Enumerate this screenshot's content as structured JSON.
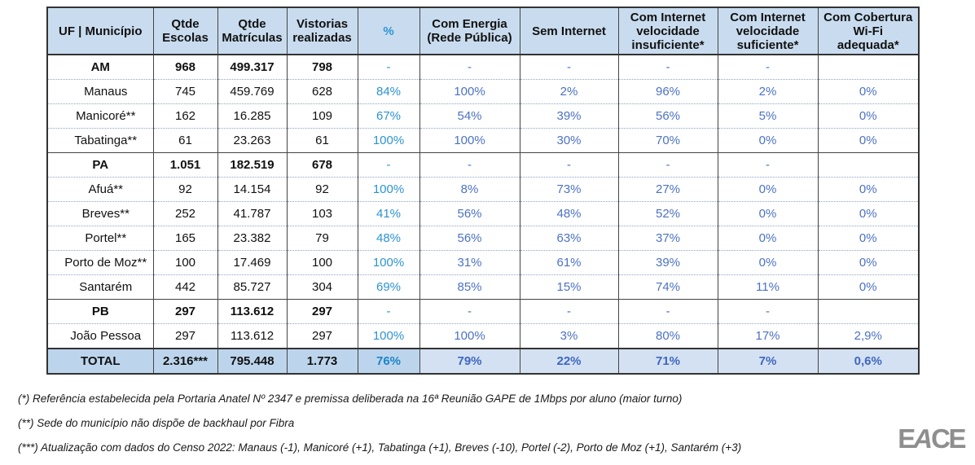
{
  "table": {
    "headers": [
      "UF | Município",
      "Qtde\nEscolas",
      "Qtde\nMatrículas",
      "Vistorias\nrealizadas",
      "%",
      "Com Energia\n(Rede Pública)",
      "Sem Internet",
      "Com Internet\nvelocidade\ninsuficiente*",
      "Com Internet\nvelocidade\nsuficiente*",
      "Com Cobertura\nWi-Fi\nadequada*"
    ],
    "rows": [
      {
        "type": "state",
        "label": "AM",
        "escolas": "968",
        "matriculas": "499.317",
        "vistorias": "798",
        "pct": "-",
        "energia": "-",
        "sem_internet": "-",
        "insuficiente": "-",
        "suficiente": "-",
        "wifi": ""
      },
      {
        "type": "muni",
        "label": "Manaus",
        "escolas": "745",
        "matriculas": "459.769",
        "vistorias": "628",
        "pct": "84%",
        "energia": "100%",
        "sem_internet": "2%",
        "insuficiente": "96%",
        "suficiente": "2%",
        "wifi": "0%"
      },
      {
        "type": "muni",
        "label": "Manicoré**",
        "escolas": "162",
        "matriculas": "16.285",
        "vistorias": "109",
        "pct": "67%",
        "energia": "54%",
        "sem_internet": "39%",
        "insuficiente": "56%",
        "suficiente": "5%",
        "wifi": "0%"
      },
      {
        "type": "muni",
        "label": "Tabatinga**",
        "escolas": "61",
        "matriculas": "23.263",
        "vistorias": "61",
        "pct": "100%",
        "energia": "100%",
        "sem_internet": "30%",
        "insuficiente": "70%",
        "suficiente": "0%",
        "wifi": "0%"
      },
      {
        "type": "state",
        "label": "PA",
        "escolas": "1.051",
        "matriculas": "182.519",
        "vistorias": "678",
        "pct": "-",
        "energia": "-",
        "sem_internet": "-",
        "insuficiente": "-",
        "suficiente": "-",
        "wifi": ""
      },
      {
        "type": "muni",
        "label": "Afuá**",
        "escolas": "92",
        "matriculas": "14.154",
        "vistorias": "92",
        "pct": "100%",
        "energia": "8%",
        "sem_internet": "73%",
        "insuficiente": "27%",
        "suficiente": "0%",
        "wifi": "0%"
      },
      {
        "type": "muni",
        "label": "Breves**",
        "escolas": "252",
        "matriculas": "41.787",
        "vistorias": "103",
        "pct": "41%",
        "energia": "56%",
        "sem_internet": "48%",
        "insuficiente": "52%",
        "suficiente": "0%",
        "wifi": "0%"
      },
      {
        "type": "muni",
        "label": "Portel**",
        "escolas": "165",
        "matriculas": "23.382",
        "vistorias": "79",
        "pct": "48%",
        "energia": "56%",
        "sem_internet": "63%",
        "insuficiente": "37%",
        "suficiente": "0%",
        "wifi": "0%"
      },
      {
        "type": "muni",
        "label": "Porto de Moz**",
        "escolas": "100",
        "matriculas": "17.469",
        "vistorias": "100",
        "pct": "100%",
        "energia": "31%",
        "sem_internet": "61%",
        "insuficiente": "39%",
        "suficiente": "0%",
        "wifi": "0%"
      },
      {
        "type": "muni",
        "label": "Santarém",
        "escolas": "442",
        "matriculas": "85.727",
        "vistorias": "304",
        "pct": "69%",
        "energia": "85%",
        "sem_internet": "15%",
        "insuficiente": "74%",
        "suficiente": "11%",
        "wifi": "0%"
      },
      {
        "type": "state",
        "label": "PB",
        "escolas": "297",
        "matriculas": "113.612",
        "vistorias": "297",
        "pct": "-",
        "energia": "-",
        "sem_internet": "-",
        "insuficiente": "-",
        "suficiente": "-",
        "wifi": ""
      },
      {
        "type": "muni",
        "label": "João Pessoa",
        "escolas": "297",
        "matriculas": "113.612",
        "vistorias": "297",
        "pct": "100%",
        "energia": "100%",
        "sem_internet": "3%",
        "insuficiente": "80%",
        "suficiente": "17%",
        "wifi": "2,9%"
      },
      {
        "type": "total",
        "label": "TOTAL",
        "escolas": "2.316***",
        "matriculas": "795.448",
        "vistorias": "1.773",
        "pct": "76%",
        "energia": "79%",
        "sem_internet": "22%",
        "insuficiente": "71%",
        "suficiente": "7%",
        "wifi": "0,6%"
      }
    ]
  },
  "footnotes": [
    "(*) Referência estabelecida pela Portaria Anatel Nº 2347 e premissa deliberada na 16ª Reunião GAPE de 1Mbps por aluno (maior turno)",
    "(**) Sede do município não dispõe de backhaul por Fibra",
    "(***) Atualização com dados do Censo 2022: Manaus (-1), Manicoré (+1), Tabatinga (+1), Breves (-10), Portel (-2), Porto de Moz (+1), Santarém (+3)"
  ],
  "logo": {
    "letters": [
      "E",
      "A",
      "C",
      "E"
    ]
  },
  "colors": {
    "header_bg": "#C9DCEF",
    "shade_bg": "#DCE7F5",
    "total_bg": "#BDD5EC",
    "total_shade_bg": "#D4E1F2",
    "pct_blue": "#2D93D2",
    "data_blue": "#4C72C4",
    "total_pct_blue": "#1B84C8",
    "total_data_blue": "#3E68C0",
    "border": "#333333",
    "logo_gray": "#8E8E8E"
  }
}
